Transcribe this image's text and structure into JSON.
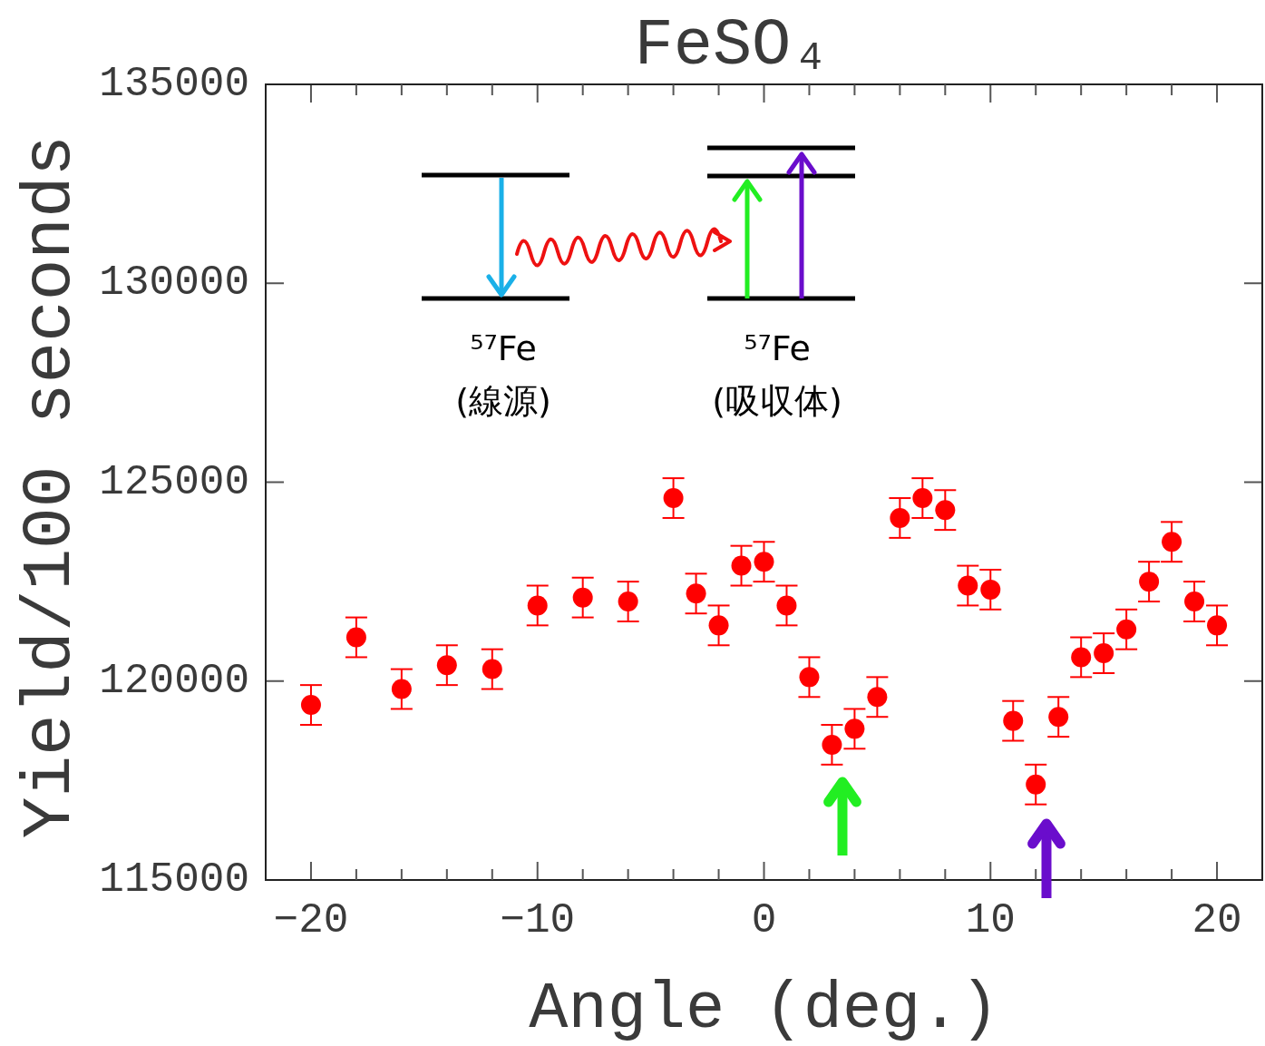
{
  "chart_data": {
    "type": "scatter",
    "title": "FeSO₄",
    "xlabel": "Angle (deg.)",
    "ylabel": "Yield/100 seconds",
    "x": [
      -20,
      -18,
      -16,
      -14,
      -12,
      -10,
      -8,
      -6,
      -4,
      -3,
      -2,
      -1,
      0,
      1,
      2,
      3,
      4,
      5,
      6,
      7,
      8,
      9,
      10,
      11,
      12,
      13,
      14,
      15,
      16,
      17,
      18,
      19,
      20
    ],
    "series": [
      {
        "color": "#ff0000",
        "marker": "circle",
        "values": [
          119400,
          121100,
          119800,
          120400,
          120300,
          121900,
          122100,
          122000,
          124600,
          122200,
          121400,
          122900,
          123000,
          121900,
          120100,
          118400,
          118800,
          119600,
          124100,
          124600,
          124300,
          122400,
          122300,
          119000,
          117400,
          119100,
          120600,
          120700,
          121300,
          122500,
          123500,
          122000,
          121400
        ],
        "errors": [
          500,
          500,
          500,
          500,
          500,
          500,
          500,
          500,
          500,
          500,
          500,
          500,
          500,
          500,
          500,
          500,
          500,
          500,
          500,
          500,
          500,
          500,
          500,
          500,
          500,
          500,
          500,
          500,
          500,
          500,
          500,
          500,
          500
        ]
      }
    ],
    "xlim": [
      -22,
      22
    ],
    "xticks": [
      {
        "value": -20,
        "label": "−20"
      },
      {
        "value": -10,
        "label": "−10"
      },
      0,
      10,
      20
    ],
    "ylim": [
      115000,
      135000
    ],
    "yticks": [
      115000,
      120000,
      125000,
      130000,
      135000
    ],
    "grid": false,
    "annotations": [
      "⁵⁷Fe",
      "(線源)",
      "⁵⁷Fe",
      "(吸収体)"
    ]
  }
}
